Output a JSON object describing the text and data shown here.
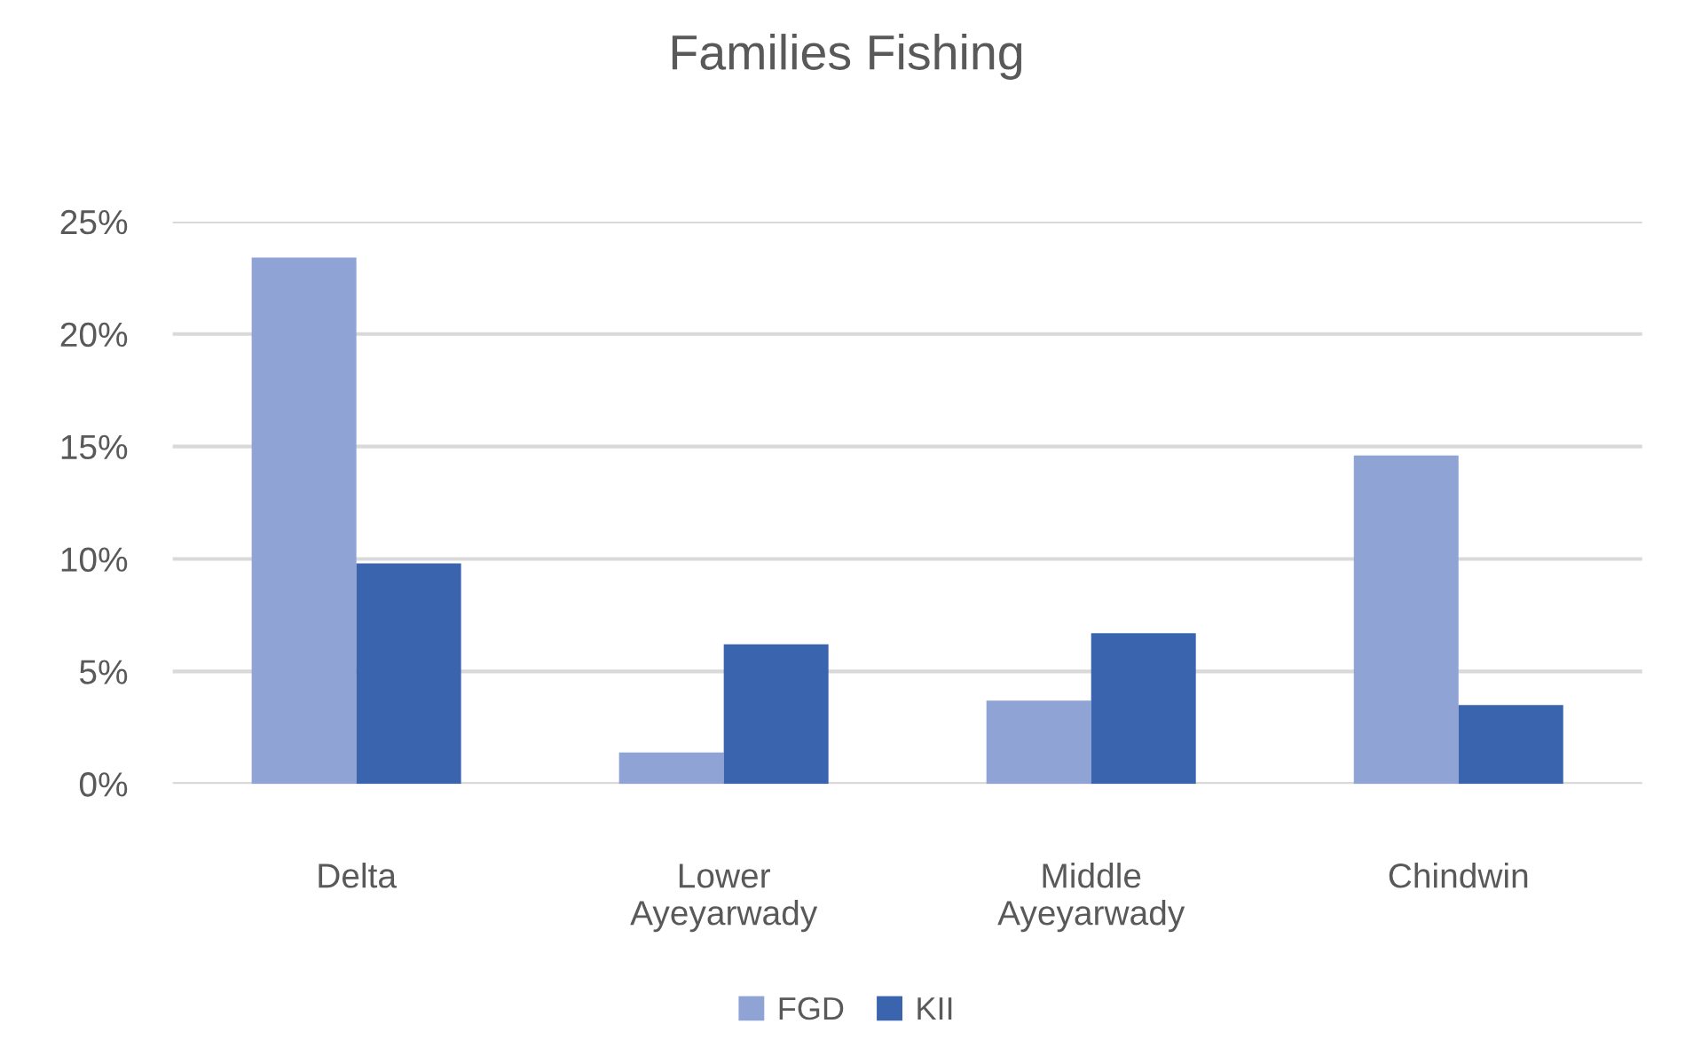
{
  "chart_data": {
    "type": "bar",
    "title": "Families Fishing",
    "categories": [
      "Delta",
      "Lower Ayeyarwady",
      "Middle Ayeyarwady",
      "Chindwin"
    ],
    "series": [
      {
        "name": "FGD",
        "color": "#8fa3d5",
        "values": [
          23.4,
          1.4,
          3.7,
          14.6
        ]
      },
      {
        "name": "KII",
        "color": "#3a64ad",
        "values": [
          9.8,
          6.2,
          6.7,
          3.5
        ]
      }
    ],
    "ylim": [
      0,
      25
    ],
    "yticks": [
      {
        "value": 0,
        "label": "0%"
      },
      {
        "value": 5,
        "label": "5%"
      },
      {
        "value": 10,
        "label": "10%"
      },
      {
        "value": 15,
        "label": "15%"
      },
      {
        "value": 20,
        "label": "20%"
      },
      {
        "value": 25,
        "label": "25%"
      }
    ],
    "grid": "y",
    "legend": "bottom"
  }
}
